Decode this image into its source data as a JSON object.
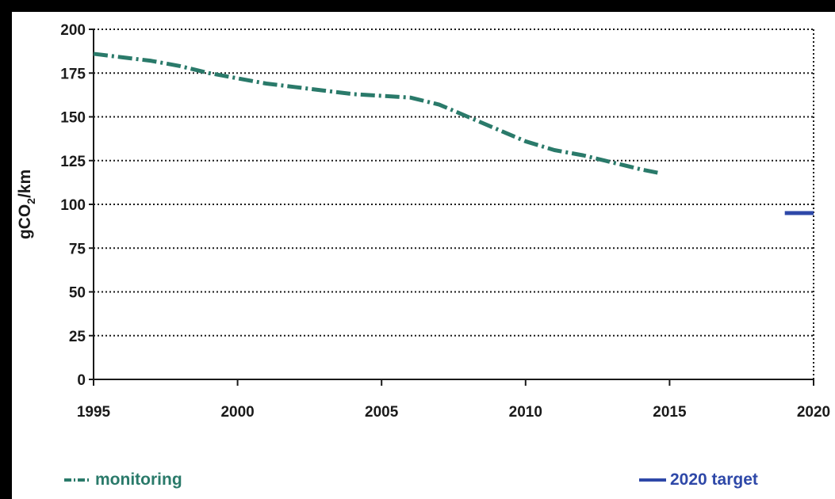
{
  "chart_data": {
    "type": "line",
    "ylabel_main": "gCO",
    "ylabel_sub": "2",
    "ylabel_tail": "/km",
    "xlim": [
      1995,
      2020
    ],
    "ylim": [
      0,
      200
    ],
    "x_ticks": [
      "1995",
      "2000",
      "2005",
      "2010",
      "2015",
      "2020"
    ],
    "y_ticks": [
      "0",
      "25",
      "50",
      "75",
      "100",
      "125",
      "150",
      "175",
      "200"
    ],
    "grid": true,
    "series": [
      {
        "name": "monitoring",
        "color": "#2a7a6a",
        "style": "dash-dot",
        "x": [
          1995,
          1996,
          1997,
          1998,
          1999,
          2000,
          2001,
          2002,
          2003,
          2004,
          2005,
          2006,
          2007,
          2008,
          2009,
          2010,
          2011,
          2012,
          2013,
          2014,
          2014.6
        ],
        "y": [
          186,
          184,
          182,
          179,
          175,
          172,
          169,
          167,
          165,
          163,
          162,
          161,
          157,
          150,
          143,
          136,
          131,
          128,
          124,
          120,
          118
        ]
      },
      {
        "name": "2020 target",
        "color": "#2e48a8",
        "style": "solid",
        "x": [
          2019,
          2020
        ],
        "y": [
          95,
          95
        ]
      }
    ],
    "legend": {
      "monitoring": "monitoring",
      "target": "2020 target"
    }
  }
}
